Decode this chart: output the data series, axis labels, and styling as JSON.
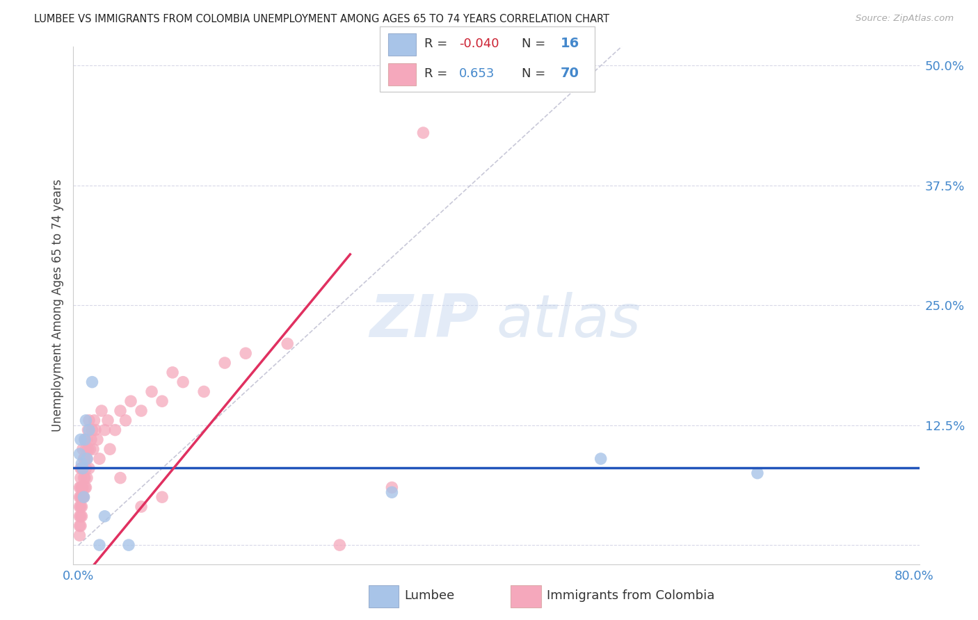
{
  "title": "LUMBEE VS IMMIGRANTS FROM COLOMBIA UNEMPLOYMENT AMONG AGES 65 TO 74 YEARS CORRELATION CHART",
  "source": "Source: ZipAtlas.com",
  "ylabel": "Unemployment Among Ages 65 to 74 years",
  "xlim": [
    -0.005,
    0.805
  ],
  "ylim": [
    -0.02,
    0.52
  ],
  "lumbee_R": "-0.040",
  "lumbee_N": "16",
  "colombia_R": "0.653",
  "colombia_N": "70",
  "lumbee_color": "#a8c4e8",
  "colombia_color": "#f5a8bc",
  "lumbee_line_color": "#2255bb",
  "colombia_line_color": "#e03060",
  "diagonal_color": "#c8c8d8",
  "watermark_zip": "ZIP",
  "watermark_atlas": "atlas",
  "accent_blue": "#4488cc",
  "accent_red": "#cc2233",
  "lumbee_x": [
    0.001,
    0.002,
    0.003,
    0.004,
    0.005,
    0.006,
    0.007,
    0.008,
    0.01,
    0.013,
    0.02,
    0.025,
    0.048,
    0.5,
    0.65,
    0.3
  ],
  "lumbee_y": [
    0.095,
    0.11,
    0.085,
    0.08,
    0.05,
    0.11,
    0.13,
    0.09,
    0.12,
    0.17,
    0.0,
    0.03,
    0.0,
    0.09,
    0.075,
    0.055
  ],
  "colombia_x": [
    0.001,
    0.001,
    0.001,
    0.001,
    0.001,
    0.001,
    0.002,
    0.002,
    0.002,
    0.002,
    0.002,
    0.002,
    0.002,
    0.003,
    0.003,
    0.003,
    0.003,
    0.003,
    0.004,
    0.004,
    0.004,
    0.004,
    0.005,
    0.005,
    0.005,
    0.006,
    0.006,
    0.006,
    0.006,
    0.007,
    0.007,
    0.007,
    0.008,
    0.008,
    0.008,
    0.009,
    0.009,
    0.01,
    0.01,
    0.011,
    0.012,
    0.013,
    0.014,
    0.015,
    0.016,
    0.018,
    0.02,
    0.022,
    0.025,
    0.028,
    0.03,
    0.035,
    0.04,
    0.045,
    0.05,
    0.06,
    0.07,
    0.08,
    0.09,
    0.1,
    0.12,
    0.14,
    0.16,
    0.2,
    0.25,
    0.3,
    0.04,
    0.06,
    0.08,
    0.33
  ],
  "colombia_y": [
    0.02,
    0.04,
    0.05,
    0.03,
    0.06,
    0.01,
    0.03,
    0.05,
    0.07,
    0.04,
    0.06,
    0.02,
    0.08,
    0.04,
    0.06,
    0.08,
    0.03,
    0.05,
    0.05,
    0.08,
    0.1,
    0.06,
    0.07,
    0.09,
    0.05,
    0.06,
    0.09,
    0.11,
    0.07,
    0.08,
    0.1,
    0.06,
    0.09,
    0.11,
    0.07,
    0.1,
    0.12,
    0.08,
    0.13,
    0.1,
    0.11,
    0.12,
    0.1,
    0.13,
    0.12,
    0.11,
    0.09,
    0.14,
    0.12,
    0.13,
    0.1,
    0.12,
    0.14,
    0.13,
    0.15,
    0.14,
    0.16,
    0.15,
    0.18,
    0.17,
    0.16,
    0.19,
    0.2,
    0.21,
    0.0,
    0.06,
    0.07,
    0.04,
    0.05,
    0.43
  ]
}
